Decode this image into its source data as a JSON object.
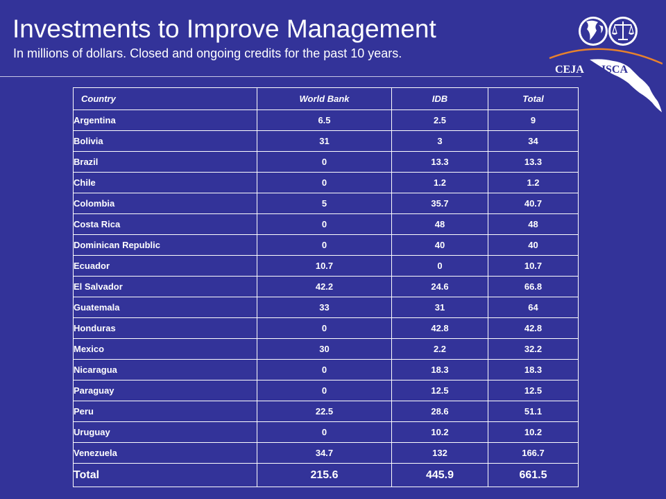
{
  "header": {
    "title": "Investments to Improve Management",
    "subtitle": "In millions of dollars. Closed and ongoing credits for the past 10 years."
  },
  "logo": {
    "text_left": "CEJA",
    "text_right": "JSCA",
    "colors": {
      "arc": "#e8822c",
      "map": "#ffffff",
      "globe_ring": "#333399"
    }
  },
  "table": {
    "columns": [
      "Country",
      "World Bank",
      "IDB",
      "Total"
    ],
    "rows": [
      [
        "Argentina",
        "6.5",
        "2.5",
        "9"
      ],
      [
        "Bolivia",
        "31",
        "3",
        "34"
      ],
      [
        "Brazil",
        "0",
        "13.3",
        "13.3"
      ],
      [
        "Chile",
        "0",
        "1.2",
        "1.2"
      ],
      [
        "Colombia",
        "5",
        "35.7",
        "40.7"
      ],
      [
        "Costa  Rica",
        "0",
        "48",
        "48"
      ],
      [
        "Dominican  Republic",
        "0",
        "40",
        "40"
      ],
      [
        "Ecuador",
        "10.7",
        "0",
        "10.7"
      ],
      [
        "El Salvador",
        "42.2",
        "24.6",
        "66.8"
      ],
      [
        "Guatemala",
        "33",
        "31",
        "64"
      ],
      [
        "Honduras",
        "0",
        "42.8",
        "42.8"
      ],
      [
        "Mexico",
        "30",
        "2.2",
        "32.2"
      ],
      [
        "Nicaragua",
        "0",
        "18.3",
        "18.3"
      ],
      [
        "Paraguay",
        "0",
        "12.5",
        "12.5"
      ],
      [
        "Peru",
        "22.5",
        "28.6",
        "51.1"
      ],
      [
        "Uruguay",
        "0",
        "10.2",
        "10.2"
      ],
      [
        "Venezuela",
        "34.7",
        "132",
        "166.7"
      ]
    ],
    "total": [
      "Total",
      "215.6",
      "445.9",
      "661.5"
    ]
  },
  "colors": {
    "background": "#333399",
    "text": "#ffffff",
    "border": "#ffffff"
  }
}
